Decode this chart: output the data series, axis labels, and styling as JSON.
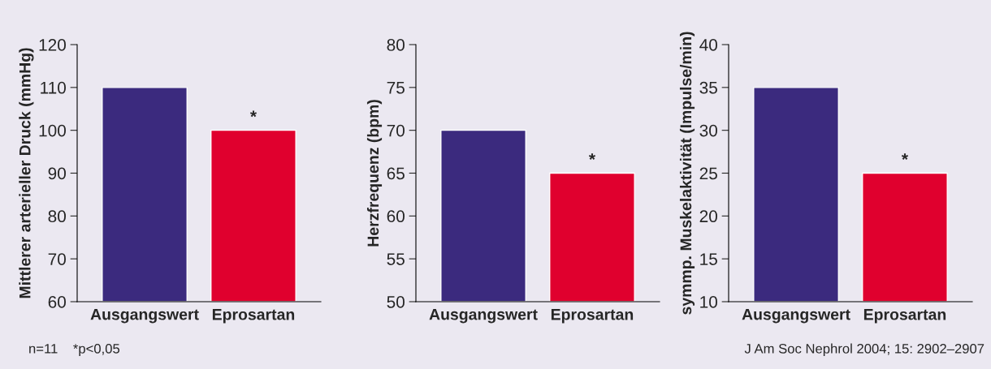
{
  "chart_data": [
    {
      "type": "bar",
      "ylabel": "Mittlerer arterieller Druck (mmHg)",
      "categories": [
        "Ausgangswert",
        "Eprosartan"
      ],
      "values": [
        110,
        100
      ],
      "colors": [
        "#3b2a7e",
        "#e0002e"
      ],
      "ylim": [
        60,
        120
      ],
      "yticks": [
        60,
        70,
        80,
        90,
        100,
        110,
        120
      ],
      "grid": false,
      "legend": false,
      "annotations": [
        {
          "text": "*",
          "x": "Eprosartan",
          "y": 100
        },
        "n=11    *p<0,05"
      ]
    },
    {
      "type": "bar",
      "ylabel": "Herzfrequenz (bpm)",
      "categories": [
        "Ausgangswert",
        "Eprosartan"
      ],
      "values": [
        70,
        65
      ],
      "colors": [
        "#3b2a7e",
        "#e0002e"
      ],
      "ylim": [
        50,
        80
      ],
      "yticks": [
        50,
        55,
        60,
        65,
        70,
        75,
        80
      ],
      "grid": false,
      "legend": false,
      "annotations": [
        {
          "text": "*",
          "x": "Eprosartan",
          "y": 65
        }
      ]
    },
    {
      "type": "bar",
      "ylabel": "symmp. Muskelaktivität (Impulse/min)",
      "categories": [
        "Ausgangswert",
        "Eprosartan"
      ],
      "values": [
        35,
        25
      ],
      "colors": [
        "#3b2a7e",
        "#e0002e"
      ],
      "ylim": [
        10,
        40
      ],
      "yticks": [
        10,
        15,
        20,
        25,
        30,
        35,
        40
      ],
      "grid": false,
      "legend": false,
      "annotations": [
        {
          "text": "*",
          "x": "Eprosartan",
          "y": 25
        },
        "J Am Soc Nephrol 2004; 15: 2902–2907"
      ]
    }
  ]
}
